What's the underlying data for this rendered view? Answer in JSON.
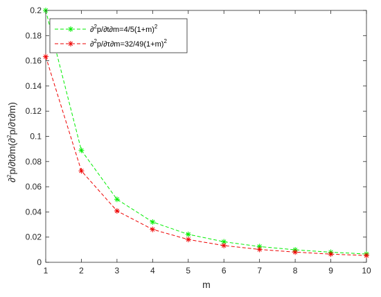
{
  "chart_data": {
    "type": "line",
    "xlabel": "m",
    "ylabel_parts": [
      "∂",
      "2",
      "p/∂t∂m(∂",
      "2",
      "p/∂τ∂m)"
    ],
    "x": [
      1,
      2,
      3,
      4,
      5,
      6,
      7,
      8,
      9,
      10
    ],
    "xlim": [
      1,
      10
    ],
    "ylim": [
      0,
      0.2
    ],
    "x_ticks": [
      1,
      2,
      3,
      4,
      5,
      6,
      7,
      8,
      9,
      10
    ],
    "y_ticks": [
      0,
      0.02,
      0.04,
      0.06,
      0.08,
      0.1,
      0.12,
      0.14,
      0.16,
      0.18,
      0.2
    ],
    "grid": false,
    "legend_position": "top-left",
    "series": [
      {
        "name_parts": [
          "∂",
          "2",
          "p/∂t∂m=4/5(1+m)",
          "2"
        ],
        "color": "#00ee00",
        "line_style": "dashed",
        "marker": "asterisk",
        "values": [
          0.2,
          0.0889,
          0.05,
          0.032,
          0.0222,
          0.0163,
          0.0125,
          0.0099,
          0.008,
          0.0066
        ]
      },
      {
        "name_parts": [
          "∂",
          "2",
          "p/∂τ∂m=32/49(1+m)",
          "2"
        ],
        "color": "#ee0000",
        "line_style": "dashed",
        "marker": "asterisk",
        "values": [
          0.1633,
          0.0726,
          0.0408,
          0.0261,
          0.0181,
          0.0133,
          0.0102,
          0.0081,
          0.0065,
          0.0054
        ]
      }
    ]
  }
}
